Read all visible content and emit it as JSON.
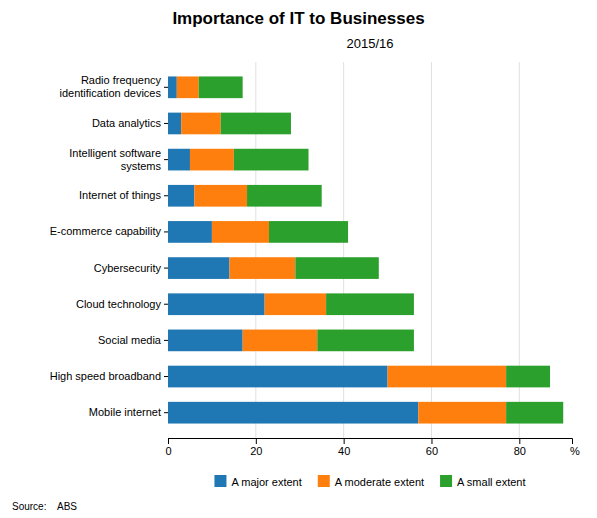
{
  "chart_data": {
    "type": "bar",
    "orientation": "horizontal",
    "stacked": true,
    "grid": true,
    "title": "Importance of IT to Businesses",
    "subtitle": "2015/16",
    "source": "Source:    ABS",
    "xlabel": "%",
    "categories": [
      "Mobile internet",
      "High speed broadband",
      "Social media",
      "Cloud technology",
      "Cybersecurity",
      "E-commerce capability",
      "Internet of things",
      "Intelligent software\nsystems",
      "Data analytics",
      "Radio frequency\nidentification devices"
    ],
    "series": [
      {
        "name": "A major extent",
        "values": [
          57,
          50,
          17,
          22,
          14,
          10,
          6,
          5,
          3,
          2
        ]
      },
      {
        "name": "A moderate extent",
        "values": [
          20,
          27,
          17,
          14,
          15,
          13,
          12,
          10,
          9,
          5
        ]
      },
      {
        "name": "A small extent",
        "values": [
          13,
          10,
          22,
          20,
          19,
          18,
          17,
          17,
          16,
          10
        ]
      }
    ],
    "xlim": [
      0,
      92
    ],
    "xticks": [
      0,
      20,
      40,
      60,
      80
    ]
  }
}
